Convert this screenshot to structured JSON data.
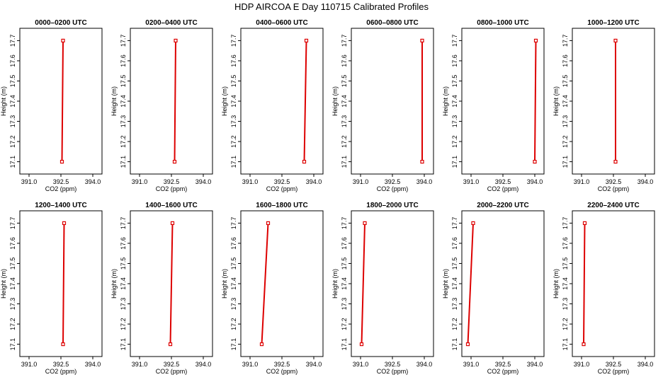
{
  "figure_title": "HDP AIRCOA E  Day 110715  Calibrated Profiles",
  "chart_data": [
    {
      "type": "line",
      "title": "0000–0200 UTC",
      "xlabel": "CO2 (ppm)",
      "ylabel": "Height (m)",
      "xlim": [
        390.8,
        394.2
      ],
      "ylim": [
        17.06,
        17.74
      ],
      "xticks": [
        "391.0",
        "392.5",
        "394.0"
      ],
      "yticks": [
        "17.1",
        "17.2",
        "17.3",
        "17.4",
        "17.5",
        "17.6",
        "17.7"
      ],
      "series": [
        {
          "x": [
            392.55,
            392.6
          ],
          "y": [
            17.1,
            17.7
          ]
        }
      ],
      "color": "#dd0000",
      "grid": false
    },
    {
      "type": "line",
      "title": "0200–0400 UTC",
      "xlabel": "CO2 (ppm)",
      "ylabel": "Height (m)",
      "xlim": [
        390.8,
        394.2
      ],
      "ylim": [
        17.06,
        17.74
      ],
      "xticks": [
        "391.0",
        "392.5",
        "394.0"
      ],
      "yticks": [
        "17.1",
        "17.2",
        "17.3",
        "17.4",
        "17.5",
        "17.6",
        "17.7"
      ],
      "series": [
        {
          "x": [
            392.65,
            392.7
          ],
          "y": [
            17.1,
            17.7
          ]
        }
      ],
      "color": "#dd0000",
      "grid": false
    },
    {
      "type": "line",
      "title": "0400–0600 UTC",
      "xlabel": "CO2 (ppm)",
      "ylabel": "Height (m)",
      "xlim": [
        390.8,
        394.2
      ],
      "ylim": [
        17.06,
        17.74
      ],
      "xticks": [
        "391.0",
        "392.5",
        "394.0"
      ],
      "yticks": [
        "17.1",
        "17.2",
        "17.3",
        "17.4",
        "17.5",
        "17.6",
        "17.7"
      ],
      "series": [
        {
          "x": [
            393.55,
            393.65
          ],
          "y": [
            17.1,
            17.7
          ]
        }
      ],
      "color": "#dd0000",
      "grid": false
    },
    {
      "type": "line",
      "title": "0600–0800 UTC",
      "xlabel": "CO2 (ppm)",
      "ylabel": "Height (m)",
      "xlim": [
        390.8,
        394.2
      ],
      "ylim": [
        17.06,
        17.74
      ],
      "xticks": [
        "391.0",
        "392.5",
        "394.0"
      ],
      "yticks": [
        "17.1",
        "17.2",
        "17.3",
        "17.4",
        "17.5",
        "17.6",
        "17.7"
      ],
      "series": [
        {
          "x": [
            393.9,
            393.9
          ],
          "y": [
            17.1,
            17.7
          ]
        }
      ],
      "color": "#dd0000",
      "grid": false
    },
    {
      "type": "line",
      "title": "0800–1000 UTC",
      "xlabel": "CO2 (ppm)",
      "ylabel": "Height (m)",
      "xlim": [
        390.8,
        394.2
      ],
      "ylim": [
        17.06,
        17.74
      ],
      "xticks": [
        "391.0",
        "392.5",
        "394.0"
      ],
      "yticks": [
        "17.1",
        "17.2",
        "17.3",
        "17.4",
        "17.5",
        "17.6",
        "17.7"
      ],
      "series": [
        {
          "x": [
            394.0,
            394.05
          ],
          "y": [
            17.1,
            17.7
          ]
        }
      ],
      "color": "#dd0000",
      "grid": false
    },
    {
      "type": "line",
      "title": "1000–1200 UTC",
      "xlabel": "CO2 (ppm)",
      "ylabel": "Height (m)",
      "xlim": [
        390.8,
        394.2
      ],
      "ylim": [
        17.06,
        17.74
      ],
      "xticks": [
        "391.0",
        "392.5",
        "394.0"
      ],
      "yticks": [
        "17.1",
        "17.2",
        "17.3",
        "17.4",
        "17.5",
        "17.6",
        "17.7"
      ],
      "series": [
        {
          "x": [
            392.6,
            392.6
          ],
          "y": [
            17.1,
            17.7
          ]
        }
      ],
      "color": "#dd0000",
      "grid": false
    },
    {
      "type": "line",
      "title": "1200–1400 UTC",
      "xlabel": "CO2 (ppm)",
      "ylabel": "Height (m)",
      "xlim": [
        390.8,
        394.2
      ],
      "ylim": [
        17.06,
        17.74
      ],
      "xticks": [
        "391.0",
        "392.5",
        "394.0"
      ],
      "yticks": [
        "17.1",
        "17.2",
        "17.3",
        "17.4",
        "17.5",
        "17.6",
        "17.7"
      ],
      "series": [
        {
          "x": [
            392.6,
            392.65
          ],
          "y": [
            17.1,
            17.7
          ]
        }
      ],
      "color": "#dd0000",
      "grid": false
    },
    {
      "type": "line",
      "title": "1400–1600 UTC",
      "xlabel": "CO2 (ppm)",
      "ylabel": "Height (m)",
      "xlim": [
        390.8,
        394.2
      ],
      "ylim": [
        17.06,
        17.74
      ],
      "xticks": [
        "391.0",
        "392.5",
        "394.0"
      ],
      "yticks": [
        "17.1",
        "17.2",
        "17.3",
        "17.4",
        "17.5",
        "17.6",
        "17.7"
      ],
      "series": [
        {
          "x": [
            392.45,
            392.55
          ],
          "y": [
            17.1,
            17.7
          ]
        }
      ],
      "color": "#dd0000",
      "grid": false
    },
    {
      "type": "line",
      "title": "1600–1800 UTC",
      "xlabel": "CO2 (ppm)",
      "ylabel": "Height (m)",
      "xlim": [
        390.8,
        394.2
      ],
      "ylim": [
        17.06,
        17.74
      ],
      "xticks": [
        "391.0",
        "392.5",
        "394.0"
      ],
      "yticks": [
        "17.1",
        "17.2",
        "17.3",
        "17.4",
        "17.5",
        "17.6",
        "17.7"
      ],
      "series": [
        {
          "x": [
            391.55,
            391.85
          ],
          "y": [
            17.1,
            17.7
          ]
        }
      ],
      "color": "#dd0000",
      "grid": false
    },
    {
      "type": "line",
      "title": "1800–2000 UTC",
      "xlabel": "CO2 (ppm)",
      "ylabel": "Height (m)",
      "xlim": [
        390.8,
        394.2
      ],
      "ylim": [
        17.06,
        17.74
      ],
      "xticks": [
        "391.0",
        "392.5",
        "394.0"
      ],
      "yticks": [
        "17.1",
        "17.2",
        "17.3",
        "17.4",
        "17.5",
        "17.6",
        "17.7"
      ],
      "series": [
        {
          "x": [
            391.05,
            391.2
          ],
          "y": [
            17.1,
            17.7
          ]
        }
      ],
      "color": "#dd0000",
      "grid": false
    },
    {
      "type": "line",
      "title": "2000–2200 UTC",
      "xlabel": "CO2 (ppm)",
      "ylabel": "Height (m)",
      "xlim": [
        390.8,
        394.2
      ],
      "ylim": [
        17.06,
        17.74
      ],
      "xticks": [
        "391.0",
        "392.5",
        "394.0"
      ],
      "yticks": [
        "17.1",
        "17.2",
        "17.3",
        "17.4",
        "17.5",
        "17.6",
        "17.7"
      ],
      "series": [
        {
          "x": [
            390.85,
            391.1
          ],
          "y": [
            17.1,
            17.7
          ]
        }
      ],
      "color": "#dd0000",
      "grid": false
    },
    {
      "type": "line",
      "title": "2200–2400 UTC",
      "xlabel": "CO2 (ppm)",
      "ylabel": "Height (m)",
      "xlim": [
        390.8,
        394.2
      ],
      "ylim": [
        17.06,
        17.74
      ],
      "xticks": [
        "391.0",
        "392.5",
        "394.0"
      ],
      "yticks": [
        "17.1",
        "17.2",
        "17.3",
        "17.4",
        "17.5",
        "17.6",
        "17.7"
      ],
      "series": [
        {
          "x": [
            391.1,
            391.15
          ],
          "y": [
            17.1,
            17.7
          ]
        }
      ],
      "color": "#dd0000",
      "grid": false
    }
  ]
}
